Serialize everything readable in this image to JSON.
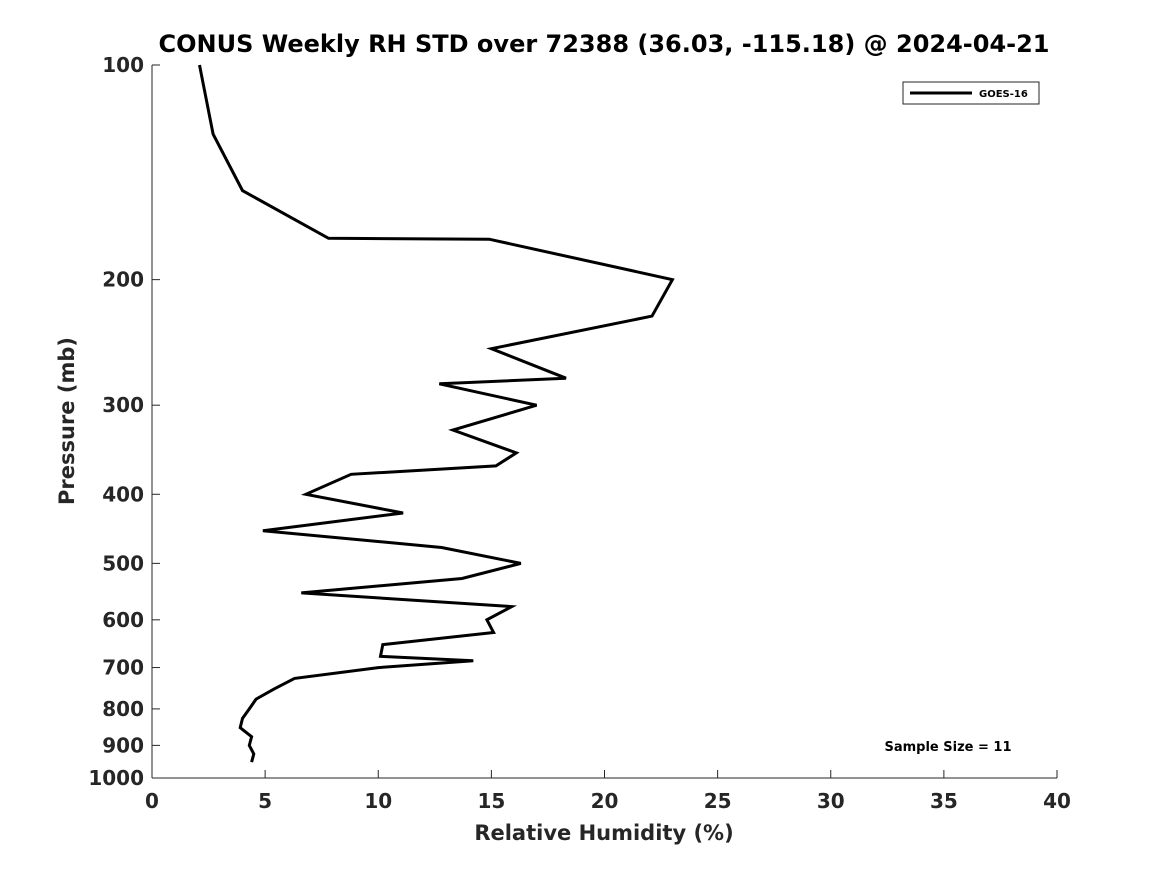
{
  "chart_data": {
    "type": "line",
    "title": "CONUS Weekly RH STD over 72388 (36.03, -115.18) @ 2024-04-21",
    "xlabel": "Relative Humidity (%)",
    "ylabel": "Pressure (mb)",
    "xlim": [
      0,
      40
    ],
    "ylim": [
      100,
      1000
    ],
    "y_scale": "log",
    "y_reversed": true,
    "grid": false,
    "legend_position": "top-right",
    "x_ticks": [
      0,
      5,
      10,
      15,
      20,
      25,
      30,
      35,
      40
    ],
    "y_ticks": [
      100,
      200,
      300,
      400,
      500,
      600,
      700,
      800,
      900,
      1000
    ],
    "annotation": "Sample Size = 11",
    "series": [
      {
        "name": "GOES-16",
        "color": "#000000",
        "points": [
          {
            "x": 2.1,
            "p": 100
          },
          {
            "x": 2.7,
            "p": 125
          },
          {
            "x": 4.0,
            "p": 150
          },
          {
            "x": 7.8,
            "p": 175
          },
          {
            "x": 14.9,
            "p": 175.5
          },
          {
            "x": 23.0,
            "p": 200
          },
          {
            "x": 22.1,
            "p": 225
          },
          {
            "x": 15.0,
            "p": 250
          },
          {
            "x": 18.3,
            "p": 275
          },
          {
            "x": 12.7,
            "p": 280
          },
          {
            "x": 17.0,
            "p": 300
          },
          {
            "x": 13.3,
            "p": 325
          },
          {
            "x": 16.1,
            "p": 350
          },
          {
            "x": 15.2,
            "p": 365
          },
          {
            "x": 8.8,
            "p": 375
          },
          {
            "x": 6.8,
            "p": 400
          },
          {
            "x": 11.1,
            "p": 425
          },
          {
            "x": 4.9,
            "p": 450
          },
          {
            "x": 12.8,
            "p": 475
          },
          {
            "x": 16.3,
            "p": 500
          },
          {
            "x": 13.7,
            "p": 525
          },
          {
            "x": 6.6,
            "p": 550
          },
          {
            "x": 15.9,
            "p": 575
          },
          {
            "x": 14.8,
            "p": 600
          },
          {
            "x": 15.1,
            "p": 625
          },
          {
            "x": 10.2,
            "p": 650
          },
          {
            "x": 10.1,
            "p": 675
          },
          {
            "x": 14.2,
            "p": 685
          },
          {
            "x": 10.0,
            "p": 700
          },
          {
            "x": 6.3,
            "p": 725
          },
          {
            "x": 5.4,
            "p": 750
          },
          {
            "x": 4.6,
            "p": 775
          },
          {
            "x": 4.3,
            "p": 800
          },
          {
            "x": 4.0,
            "p": 825
          },
          {
            "x": 3.9,
            "p": 850
          },
          {
            "x": 4.4,
            "p": 875
          },
          {
            "x": 4.3,
            "p": 900
          },
          {
            "x": 4.5,
            "p": 925
          },
          {
            "x": 4.4,
            "p": 950
          }
        ]
      }
    ]
  }
}
